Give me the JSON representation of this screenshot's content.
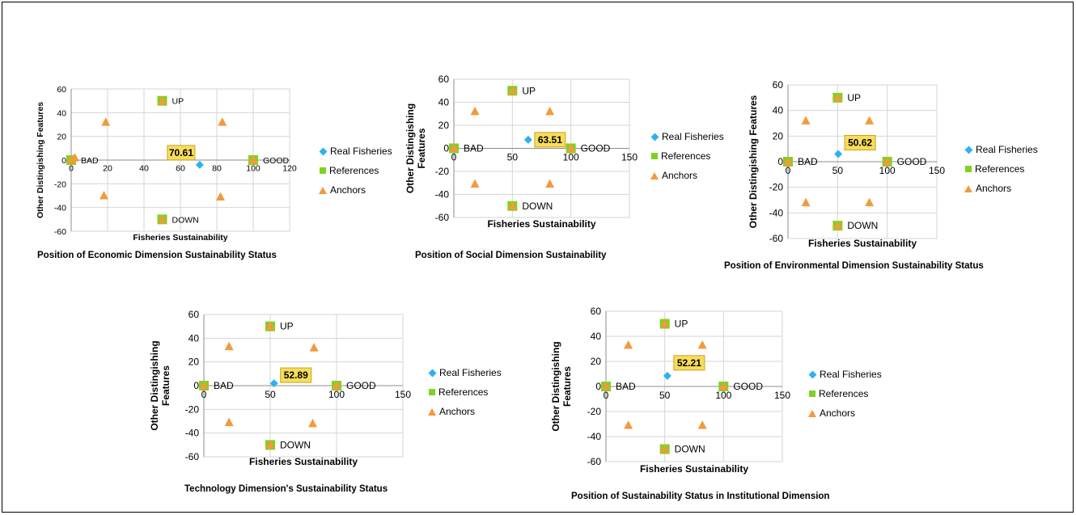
{
  "legend_labels": {
    "real": "Real Fisheries",
    "references": "References",
    "anchors": "Anchors"
  },
  "colors": {
    "real": "#2fb0f0",
    "references": "#7ed321",
    "anchors": "#f39a3c",
    "value_box": "#f7dd5a",
    "value_border": "#c9a227"
  },
  "chart_data": [
    {
      "type": "scatter",
      "caption": "Position of Economic Dimension Sustainability Status",
      "xlabel": "Fisheries  Sustainability",
      "ylabel": "Other Distingishing  Features",
      "xlim": [
        0,
        120
      ],
      "ylim": [
        -60,
        60
      ],
      "xticks": [
        0,
        20,
        40,
        60,
        80,
        100,
        120
      ],
      "yticks": [
        60,
        40,
        20,
        0,
        -20,
        -40,
        -60
      ],
      "grid": true,
      "legend_position": "right",
      "real_fisheries": {
        "x": 70.61,
        "y": -4,
        "label": "70.61"
      },
      "references": [
        {
          "x": 0,
          "y": 0,
          "label": "BAD"
        },
        {
          "x": 100,
          "y": 0,
          "label": "GOOD"
        },
        {
          "x": 50,
          "y": 50,
          "label": "UP"
        },
        {
          "x": 50,
          "y": -50,
          "label": "DOWN"
        }
      ],
      "anchors": [
        [
          0,
          0
        ],
        [
          100,
          0
        ],
        [
          50,
          50
        ],
        [
          50,
          -50
        ],
        [
          19,
          32
        ],
        [
          83,
          32
        ],
        [
          18,
          -30
        ],
        [
          82,
          -31
        ],
        [
          2,
          2
        ]
      ]
    },
    {
      "type": "scatter",
      "caption": "Position of Social Dimension Sustainability",
      "xlabel": "Fisheries Sustainability",
      "ylabel": "Other Distingishing Features",
      "xlim": [
        0,
        150
      ],
      "ylim": [
        -60,
        60
      ],
      "xticks": [
        0,
        50,
        100,
        150
      ],
      "yticks": [
        60,
        40,
        20,
        0,
        -20,
        -40,
        -60
      ],
      "grid": true,
      "legend_position": "right",
      "real_fisheries": {
        "x": 63.51,
        "y": 7.5,
        "label": "63.51"
      },
      "references": [
        {
          "x": 0,
          "y": 0,
          "label": "BAD"
        },
        {
          "x": 100,
          "y": 0,
          "label": "GOOD"
        },
        {
          "x": 50,
          "y": 50,
          "label": "UP"
        },
        {
          "x": 50,
          "y": -50,
          "label": "DOWN"
        }
      ],
      "anchors": [
        [
          0,
          0
        ],
        [
          100,
          0
        ],
        [
          50,
          50
        ],
        [
          50,
          -50
        ],
        [
          18,
          32
        ],
        [
          82,
          32
        ],
        [
          18,
          -31
        ],
        [
          82,
          -31
        ]
      ]
    },
    {
      "type": "scatter",
      "caption": "Position of Environmental Dimension Sustainability Status",
      "xlabel": "Fisheries Sustainability",
      "ylabel": "Other Distingishing Features",
      "xlim": [
        0,
        150
      ],
      "ylim": [
        -60,
        60
      ],
      "xticks": [
        0,
        50,
        100,
        150
      ],
      "yticks": [
        60,
        40,
        20,
        0,
        -20,
        -40,
        -60
      ],
      "grid": true,
      "legend_position": "right",
      "real_fisheries": {
        "x": 50.62,
        "y": 6,
        "label": "50.62"
      },
      "references": [
        {
          "x": 0,
          "y": 0,
          "label": "BAD"
        },
        {
          "x": 100,
          "y": 0,
          "label": "GOOD"
        },
        {
          "x": 50,
          "y": 50,
          "label": "UP"
        },
        {
          "x": 50,
          "y": -50,
          "label": "DOWN"
        }
      ],
      "anchors": [
        [
          0,
          0
        ],
        [
          100,
          0
        ],
        [
          50,
          50
        ],
        [
          50,
          -50
        ],
        [
          18,
          32
        ],
        [
          82,
          32
        ],
        [
          18,
          -32
        ],
        [
          82,
          -32
        ]
      ]
    },
    {
      "type": "scatter",
      "caption": "Technology Dimension's Sustainability Status",
      "xlabel": "Fisheries Sustainability",
      "ylabel": "Other Distingishing Features",
      "xlim": [
        0,
        150
      ],
      "ylim": [
        -60,
        60
      ],
      "xticks": [
        0,
        50,
        100,
        150
      ],
      "yticks": [
        60,
        40,
        20,
        0,
        -20,
        -40,
        -60
      ],
      "grid": true,
      "legend_position": "right",
      "real_fisheries": {
        "x": 52.89,
        "y": 2,
        "label": "52.89"
      },
      "references": [
        {
          "x": 0,
          "y": 0,
          "label": "BAD"
        },
        {
          "x": 100,
          "y": 0,
          "label": "GOOD"
        },
        {
          "x": 50,
          "y": 50,
          "label": "UP"
        },
        {
          "x": 50,
          "y": -50,
          "label": "DOWN"
        }
      ],
      "anchors": [
        [
          0,
          0
        ],
        [
          100,
          0
        ],
        [
          50,
          50
        ],
        [
          50,
          -50
        ],
        [
          19,
          33
        ],
        [
          83,
          32
        ],
        [
          19,
          -31
        ],
        [
          82,
          -32
        ]
      ]
    },
    {
      "type": "scatter",
      "caption": "Position of Sustainability Status in Institutional Dimension",
      "xlabel": "Fisheries Sustainability",
      "ylabel": "Other Distingishing Features",
      "xlim": [
        0,
        150
      ],
      "ylim": [
        -60,
        60
      ],
      "xticks": [
        0,
        50,
        100,
        150
      ],
      "yticks": [
        60,
        40,
        20,
        0,
        -20,
        -40,
        -60
      ],
      "grid": true,
      "legend_position": "right",
      "real_fisheries": {
        "x": 52.21,
        "y": 8.5,
        "label": "52.21"
      },
      "references": [
        {
          "x": 0,
          "y": 0,
          "label": "BAD"
        },
        {
          "x": 100,
          "y": 0,
          "label": "GOOD"
        },
        {
          "x": 50,
          "y": 50,
          "label": "UP"
        },
        {
          "x": 50,
          "y": -50,
          "label": "DOWN"
        }
      ],
      "anchors": [
        [
          0,
          0
        ],
        [
          100,
          0
        ],
        [
          50,
          50
        ],
        [
          50,
          -50
        ],
        [
          19,
          33
        ],
        [
          82,
          33
        ],
        [
          19,
          -31
        ],
        [
          82,
          -31
        ]
      ]
    }
  ]
}
